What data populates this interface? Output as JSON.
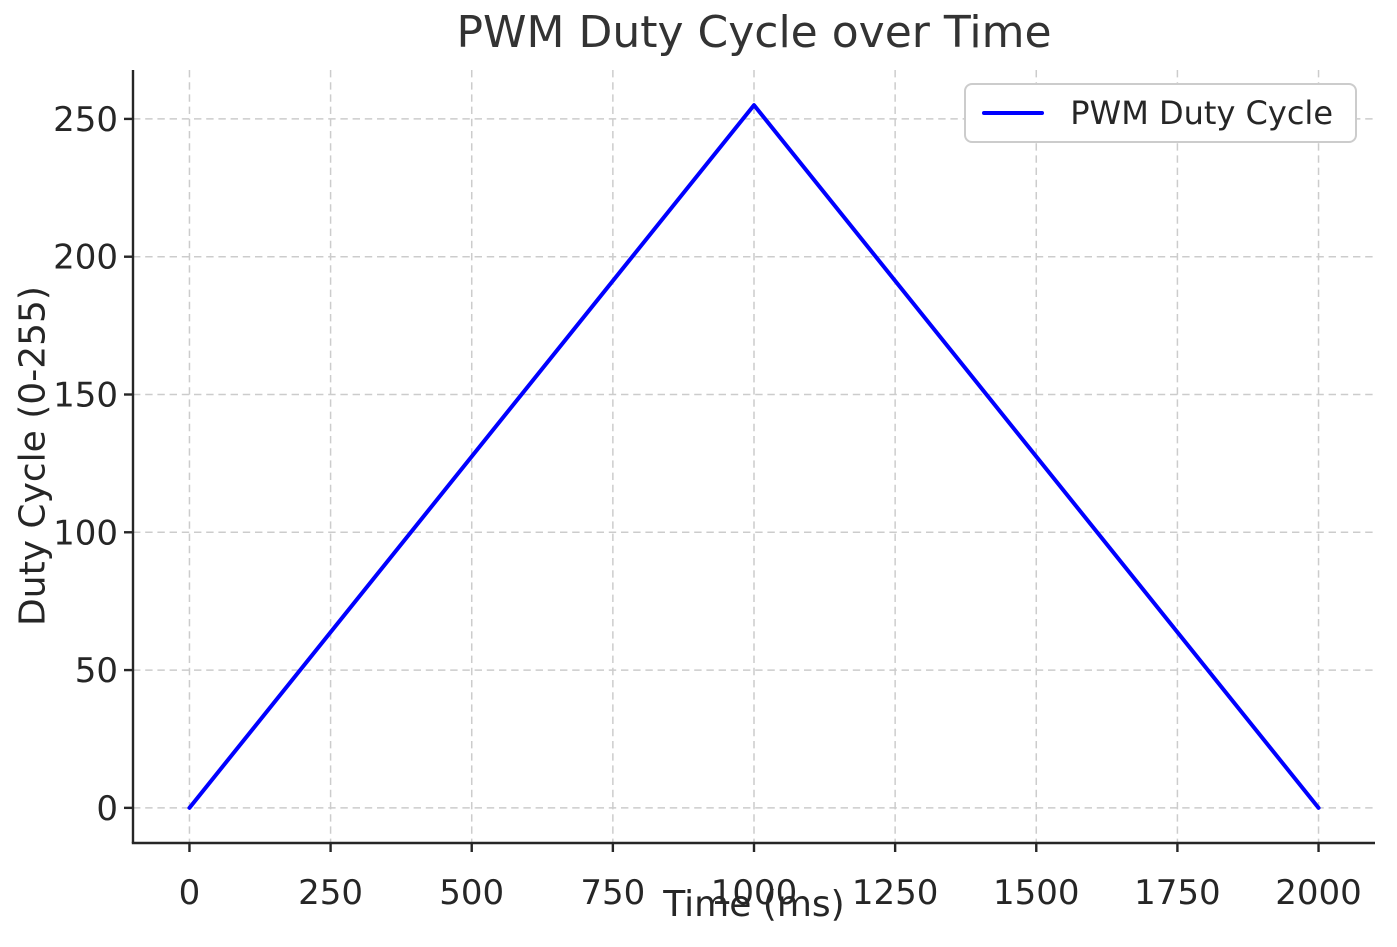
{
  "colors": {
    "line": "#0000ff",
    "grid": "#cccccc",
    "spine": "#262626",
    "tick_text": "#262626",
    "title_text": "#333333",
    "background": "#ffffff",
    "legend_border": "#cccccc"
  },
  "chart_data": {
    "type": "line",
    "title": "PWM Duty Cycle over Time",
    "xlabel": "Time (ms)",
    "ylabel": "Duty Cycle (0-255)",
    "series": [
      {
        "name": "PWM Duty Cycle",
        "color": "#0000ff",
        "points": [
          [
            0,
            0
          ],
          [
            1000,
            255
          ],
          [
            2000,
            0
          ]
        ],
        "shape": "triangular ramp: linear 0 to 255 over 0-1000 ms, linear 255 to 0 over 1000-2000 ms"
      }
    ],
    "legend_entries": [
      "PWM Duty Cycle"
    ],
    "legend_position": "upper-right",
    "xticks": [
      0,
      250,
      500,
      750,
      1000,
      1250,
      1500,
      1750,
      2000
    ],
    "yticks": [
      0,
      50,
      100,
      150,
      200,
      250
    ],
    "xlim": [
      -100,
      2100
    ],
    "ylim": [
      -12.75,
      267.75
    ],
    "grid": true,
    "grid_linestyle": "dashed",
    "spines": [
      "left",
      "bottom"
    ]
  }
}
